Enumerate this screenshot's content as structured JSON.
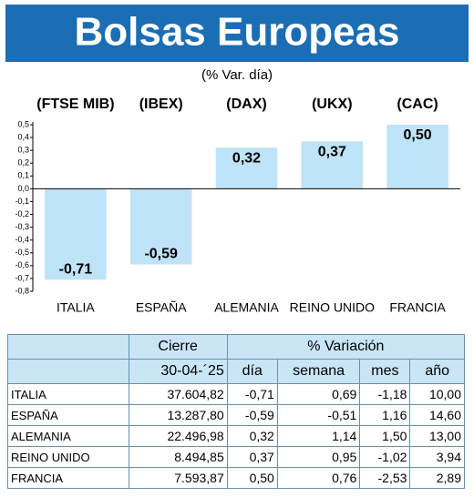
{
  "chart_data": {
    "type": "bar",
    "title": "Bolsas Europeas",
    "subtitle": "(% Var. día)",
    "indices": [
      "(FTSE MIB)",
      "(IBEX)",
      "(DAX)",
      "(UKX)",
      "(CAC)"
    ],
    "categories": [
      "ITALIA",
      "ESPAÑA",
      "ALEMANIA",
      "REINO UNIDO",
      "FRANCIA"
    ],
    "values": [
      -0.71,
      -0.59,
      0.32,
      0.37,
      0.5
    ],
    "value_labels": [
      "-0,71",
      "-0,59",
      "0,32",
      "0,37",
      "0,50"
    ],
    "color": "#bfe3f7",
    "ylim": [
      -0.8,
      0.5
    ],
    "yticks": [
      {
        "value": 0.5,
        "label": "0,5"
      },
      {
        "value": 0.4,
        "label": "0,4"
      },
      {
        "value": 0.3,
        "label": "0,3"
      },
      {
        "value": 0.2,
        "label": "0,2"
      },
      {
        "value": 0.1,
        "label": "0,1"
      },
      {
        "value": 0.0,
        "label": "0,0"
      },
      {
        "value": -0.1,
        "label": "-0,1"
      },
      {
        "value": -0.2,
        "label": "-0,2"
      },
      {
        "value": -0.3,
        "label": "-0,3"
      },
      {
        "value": -0.4,
        "label": "-0,4"
      },
      {
        "value": -0.5,
        "label": "-0,5"
      },
      {
        "value": -0.6,
        "label": "-0,6"
      },
      {
        "value": -0.7,
        "label": "-0,7"
      },
      {
        "value": -0.8,
        "label": "-0,8"
      }
    ]
  },
  "table": {
    "group_headers": [
      "Cierre",
      "% Variación"
    ],
    "headers": [
      "30-04-´25",
      "día",
      "semana",
      "mes",
      "año"
    ],
    "rows": [
      [
        "ITALIA",
        "37.604,82",
        "-0,71",
        "0,69",
        "-1,18",
        "10,00"
      ],
      [
        "ESPAÑA",
        "13.287,80",
        "-0,59",
        "-0,51",
        "1,16",
        "14,60"
      ],
      [
        "ALEMANIA",
        "22.496,98",
        "0,32",
        "1,14",
        "1,50",
        "13,00"
      ],
      [
        "REINO UNIDO",
        "8.494,85",
        "0,37",
        "0,95",
        "-1,02",
        "3,94"
      ],
      [
        "FRANCIA",
        "7.593,87",
        "0,50",
        "0,76",
        "-2,53",
        "2,89"
      ]
    ]
  }
}
